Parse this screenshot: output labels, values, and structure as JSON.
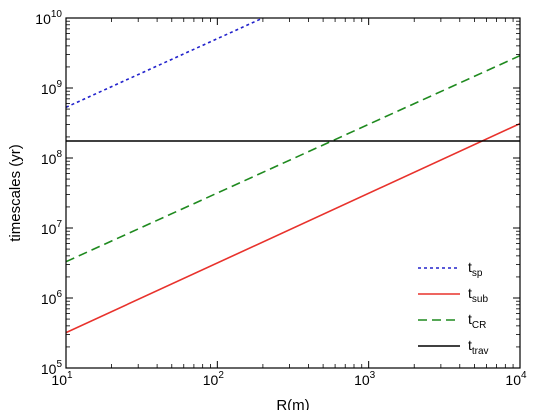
{
  "chart_data": {
    "type": "line",
    "xlabel": "R(m)",
    "ylabel": "timescales (yr)",
    "x_scale": "log",
    "y_scale": "log",
    "xlim": [
      10,
      10000
    ],
    "ylim": [
      100000,
      10000000000
    ],
    "x_ticks": [
      {
        "base": "10",
        "exp": "1"
      },
      {
        "base": "10",
        "exp": "2"
      },
      {
        "base": "10",
        "exp": "3"
      },
      {
        "base": "10",
        "exp": "4"
      }
    ],
    "y_ticks": [
      {
        "base": "10",
        "exp": "5"
      },
      {
        "base": "10",
        "exp": "6"
      },
      {
        "base": "10",
        "exp": "7"
      },
      {
        "base": "10",
        "exp": "8"
      },
      {
        "base": "10",
        "exp": "9"
      },
      {
        "base": "10",
        "exp": "10"
      }
    ],
    "grid": false,
    "legend_position": "bottom-right",
    "series": [
      {
        "name": "t",
        "sub": "sp",
        "color": "#2222cc",
        "dash": "dotted",
        "x": [
          10,
          200
        ],
        "y": [
          530000000,
          10000000000
        ]
      },
      {
        "name": "t",
        "sub": "sub",
        "color": "#e8322c",
        "dash": "solid",
        "x": [
          10,
          10000
        ],
        "y": [
          320000,
          310000000
        ]
      },
      {
        "name": "t",
        "sub": "CR",
        "color": "#1f8a1f",
        "dash": "dashed",
        "x": [
          10,
          10000
        ],
        "y": [
          3300000,
          2900000000
        ]
      },
      {
        "name": "t",
        "sub": "trav",
        "color": "#000000",
        "dash": "solid",
        "x": [
          10,
          10000
        ],
        "y": [
          175000000,
          175000000
        ]
      }
    ]
  }
}
